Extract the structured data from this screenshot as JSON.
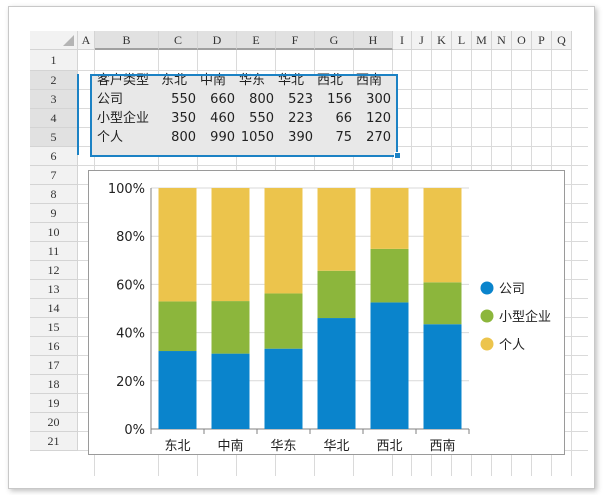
{
  "columns": [
    "A",
    "B",
    "C",
    "D",
    "E",
    "F",
    "G",
    "H",
    "I",
    "J",
    "K",
    "L",
    "M",
    "N",
    "O",
    "P",
    "Q"
  ],
  "rows": [
    "1",
    "2",
    "3",
    "4",
    "5",
    "6",
    "7",
    "8",
    "9",
    "10",
    "11",
    "12",
    "13",
    "14",
    "15",
    "16",
    "17",
    "18",
    "19",
    "20",
    "21"
  ],
  "table": {
    "header": [
      "客户类型",
      "东北",
      "中南",
      "华东",
      "华北",
      "西北",
      "西南"
    ],
    "body": [
      [
        "公司",
        "550",
        "660",
        "800",
        "523",
        "156",
        "300"
      ],
      [
        "小型企业",
        "350",
        "460",
        "550",
        "223",
        "66",
        "120"
      ],
      [
        "个人",
        "800",
        "990",
        "1050",
        "390",
        "75",
        "270"
      ]
    ]
  },
  "colors": {
    "series": [
      "#0a84cc",
      "#8cb63c",
      "#ecc44c"
    ],
    "selection": "#1c82c4"
  },
  "chart_data": {
    "type": "bar",
    "stacking": "percent",
    "categories": [
      "东北",
      "中南",
      "华东",
      "华北",
      "西北",
      "西南"
    ],
    "series": [
      {
        "name": "公司",
        "values": [
          550,
          660,
          800,
          523,
          156,
          300
        ]
      },
      {
        "name": "小型企业",
        "values": [
          350,
          460,
          550,
          223,
          66,
          120
        ]
      },
      {
        "name": "个人",
        "values": [
          800,
          990,
          1050,
          390,
          75,
          270
        ]
      }
    ],
    "ylim": [
      0,
      100
    ],
    "yticks": [
      "0%",
      "20%",
      "40%",
      "60%",
      "80%",
      "100%"
    ],
    "grid": true,
    "legend": "right"
  }
}
